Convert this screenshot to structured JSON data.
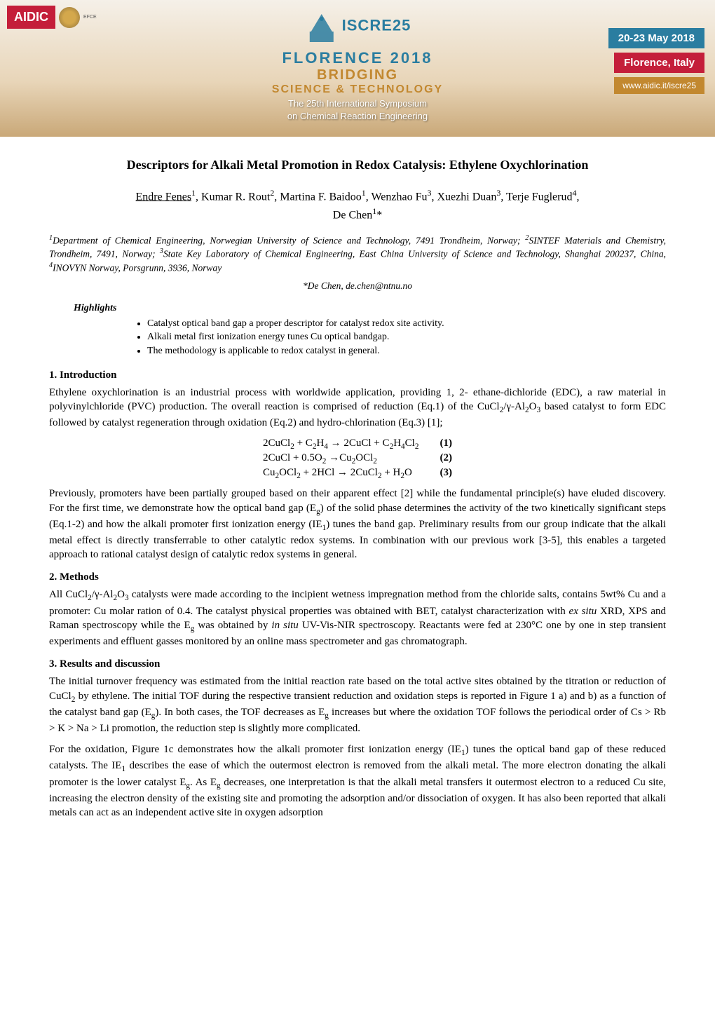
{
  "banner": {
    "left_logo_text": "AIDIC",
    "efce_label": "EFCE",
    "iscre_label": "ISCRE25",
    "florence_label": "FLORENCE 2018",
    "bridging_label": "BRIDGING",
    "science_label": "SCIENCE & TECHNOLOGY",
    "symposium_line1": "The 25th International Symposium",
    "symposium_line2": "on Chemical Reaction Engineering",
    "date_label": "20-23 May 2018",
    "location_label": "Florence, Italy",
    "url_label": "www.aidic.it/iscre25",
    "colors": {
      "blue": "#2a7da0",
      "red": "#c41e3a",
      "gold": "#c28830",
      "bg_light": "#f5f0e8",
      "bg_mid": "#e8d5b8",
      "bg_dark": "#c9a878"
    }
  },
  "paper": {
    "title": "Descriptors for Alkali Metal Promotion in Redox Catalysis: Ethylene Oxychlorination",
    "authors_html": "<span class=\"presenting\">Endre Fenes</span><sup>1</sup>, Kumar R. Rout<sup>2</sup>, Martina F. Baidoo<sup>1</sup>, Wenzhao Fu<sup>3</sup>, Xuezhi Duan<sup>3</sup>, Terje Fuglerud<sup>4</sup>,",
    "authors_line2": "De Chen<sup>1</sup>*",
    "affiliations": "<sup>1</sup>Department of Chemical Engineering, Norwegian University of Science and Technology, 7491 Trondheim, Norway; <sup>2</sup>SINTEF Materials and Chemistry, Trondheim, 7491, Norway; <sup>3</sup>State Key Laboratory of Chemical Engineering, East China University of Science and Technology, Shanghai 200237, China, <sup>4</sup>INOVYN Norway, Porsgrunn, 3936, Norway",
    "corresponding": "*De Chen, de.chen@ntnu.no",
    "highlights_label": "Highlights",
    "highlights": [
      "Catalyst optical band gap a proper descriptor for catalyst redox site activity.",
      "Alkali metal first ionization energy tunes Cu optical bandgap.",
      "The methodology is applicable to redox catalyst in general."
    ],
    "sections": {
      "intro_heading": "1. Introduction",
      "intro_p1": "Ethylene oxychlorination is an industrial process with worldwide application, providing 1, 2- ethane-dichloride (EDC), a raw material in polyvinylchloride (PVC) production. The overall reaction is comprised of reduction (Eq.1) of the CuCl<sub>2</sub>/γ-Al<sub>2</sub>O<sub>3</sub> based catalyst to form EDC followed by catalyst regeneration through oxidation (Eq.2) and hydro-chlorination (Eq.3) [1];",
      "equations": [
        {
          "eq": "2CuCl<sub>2</sub> + C<sub>2</sub>H<sub>4</sub> → 2CuCl + C<sub>2</sub>H<sub>4</sub>Cl<sub>2</sub>",
          "num": "(1)"
        },
        {
          "eq": "2CuCl  + 0.5O<sub>2</sub> →Cu<sub>2</sub>OCl<sub>2</sub>",
          "num": "(2)"
        },
        {
          "eq": "Cu<sub>2</sub>OCl<sub>2</sub> + 2HCl → 2CuCl<sub>2</sub> + H<sub>2</sub>O",
          "num": "(3)"
        }
      ],
      "intro_p2": "Previously, promoters have been partially grouped based on their apparent effect [2] while the fundamental principle(s) have eluded discovery. For the first time, we demonstrate how the optical band gap (E<sub>g</sub>) of the solid phase determines the activity of the two kinetically significant steps (Eq.1-2) and how the alkali promoter first ionization energy (IE<sub>1</sub>) tunes the band gap. Preliminary results from our group indicate that the alkali metal effect is directly transferrable to other catalytic redox systems. In combination with our previous work [3-5], this enables a targeted approach to rational catalyst design of catalytic redox systems in general.",
      "methods_heading": "2. Methods",
      "methods_p1": "All CuCl<sub>2</sub>/γ-Al<sub>2</sub>O<sub>3</sub> catalysts were made according to the incipient wetness impregnation method from the chloride salts, contains 5wt% Cu and a promoter: Cu molar ration of 0.4. The catalyst physical properties was obtained with BET, catalyst characterization with <i>ex situ</i> XRD, XPS and Raman spectroscopy while the E<sub>g</sub> was obtained by <i>in situ</i> UV-Vis-NIR spectroscopy. Reactants were fed at 230°C one by one in step transient experiments and effluent gasses monitored by an online mass spectrometer and gas chromatograph.",
      "results_heading": "3. Results and discussion",
      "results_p1": "The initial turnover frequency was estimated from the initial reaction rate based on the total active sites obtained by the titration or reduction of CuCl<sub>2</sub> by ethylene. The initial TOF during the respective transient reduction and oxidation steps is reported in Figure 1 a) and b) as a function of the catalyst band gap (E<sub>g</sub>).  In both cases, the TOF decreases as E<sub>g</sub> increases but where the oxidation TOF follows the periodical order of Cs > Rb > K > Na > Li promotion, the reduction step is slightly more complicated.",
      "results_p2": "For the oxidation, Figure 1c demonstrates how the alkali promoter first ionization energy (IE<sub>1</sub>) tunes the optical band gap of these reduced catalysts. The IE<sub>1</sub> describes the ease of which the outermost electron is removed from the alkali metal. The more electron donating the alkali promoter is the lower catalyst E<sub>g</sub>. As E<sub>g</sub> decreases, one interpretation is that the alkali metal transfers it outermost electron to a reduced Cu site, increasing the electron density of the existing site and promoting the adsorption and/or dissociation of oxygen. It has also been reported that alkali metals can act as an independent active site in oxygen adsorption"
    }
  }
}
